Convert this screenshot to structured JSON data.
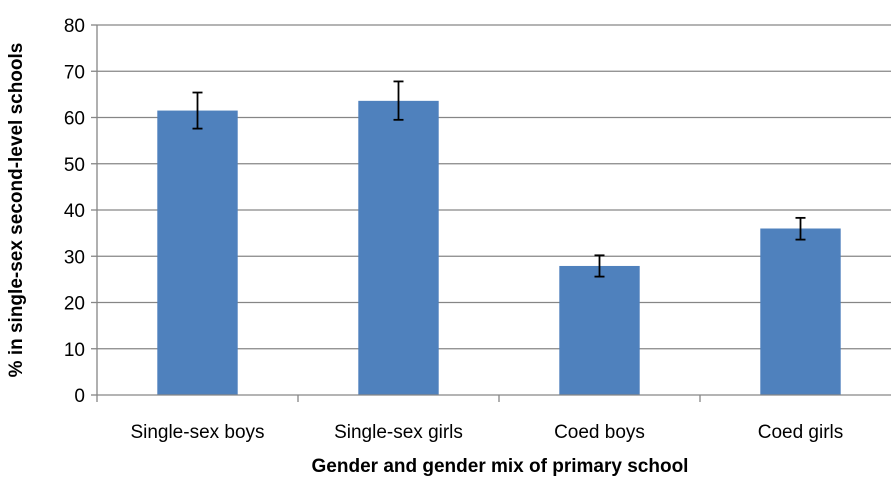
{
  "chart_data": {
    "type": "bar",
    "title": "",
    "xlabel": "Gender and gender mix of primary school",
    "ylabel": "% in single-sex second-level schools",
    "categories": [
      "Single-sex boys",
      "Single-sex girls",
      "Coed boys",
      "Coed girls"
    ],
    "values": [
      61.5,
      63.6,
      27.9,
      36.0
    ],
    "error_bars": [
      {
        "low": 57.6,
        "high": 65.4
      },
      {
        "low": 59.5,
        "high": 67.8
      },
      {
        "low": 25.6,
        "high": 30.2
      },
      {
        "low": 33.6,
        "high": 38.3
      }
    ],
    "ylim": [
      0,
      80
    ],
    "yticks": [
      0,
      10,
      20,
      30,
      40,
      50,
      60,
      70,
      80
    ],
    "grid": true,
    "legend": "none",
    "colors": {
      "bar": "#4f81bd",
      "grid": "#868686",
      "axis": "#868686",
      "error": "#000000"
    }
  }
}
